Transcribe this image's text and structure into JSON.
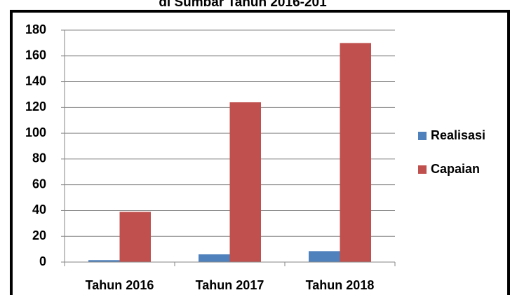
{
  "chart_data": {
    "type": "bar",
    "title": "di Sumbar Tahun 2016-201",
    "categories": [
      "Tahun 2016",
      "Tahun 2017",
      "Tahun 2018"
    ],
    "series": [
      {
        "name": "Realisasi",
        "color": "#4f81bd",
        "values": [
          1.5,
          6,
          8.5
        ]
      },
      {
        "name": "Capaian",
        "color": "#c0504d",
        "values": [
          39,
          124,
          170
        ]
      }
    ],
    "ylim": [
      0,
      180
    ],
    "yticks": [
      0,
      20,
      40,
      60,
      80,
      100,
      120,
      140,
      160,
      180
    ],
    "grid": true,
    "legend": "right"
  }
}
